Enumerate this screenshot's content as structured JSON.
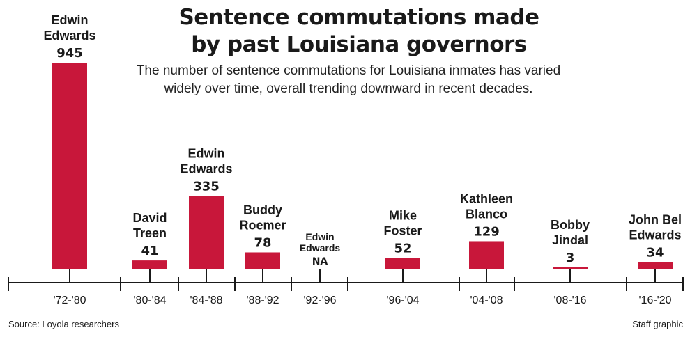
{
  "title": [
    "Sentence commutations made",
    "by past Louisiana governors"
  ],
  "subtitle": "The number of sentence commutations for Louisiana inmates has varied widely over time, overall trending downward in recent decades.",
  "source": "Source: Loyola researchers",
  "credit": "Staff graphic",
  "colors": {
    "bar": "#c8173a",
    "axis": "#1a1a1a"
  },
  "chart_data": {
    "type": "bar",
    "categories": [
      "'72-'80",
      "'80-'84",
      "'84-'88",
      "'88-'92",
      "'92-'96",
      "'96-'04",
      "'04-'08",
      "'08-'16",
      "'16-'20"
    ],
    "governors": [
      [
        "Edwin",
        "Edwards"
      ],
      [
        "David",
        "Treen"
      ],
      [
        "Edwin",
        "Edwards"
      ],
      [
        "Buddy",
        "Roemer"
      ],
      [
        "Edwin",
        "Edwards"
      ],
      [
        "Mike",
        "Foster"
      ],
      [
        "Kathleen",
        "Blanco"
      ],
      [
        "Bobby",
        "Jindal"
      ],
      [
        "John Bel",
        "Edwards"
      ]
    ],
    "values": [
      945,
      41,
      335,
      78,
      null,
      52,
      129,
      3,
      34
    ],
    "value_labels": [
      "945",
      "41",
      "335",
      "78",
      "NA",
      "52",
      "129",
      "3",
      "34"
    ],
    "ylim": [
      0,
      945
    ]
  }
}
